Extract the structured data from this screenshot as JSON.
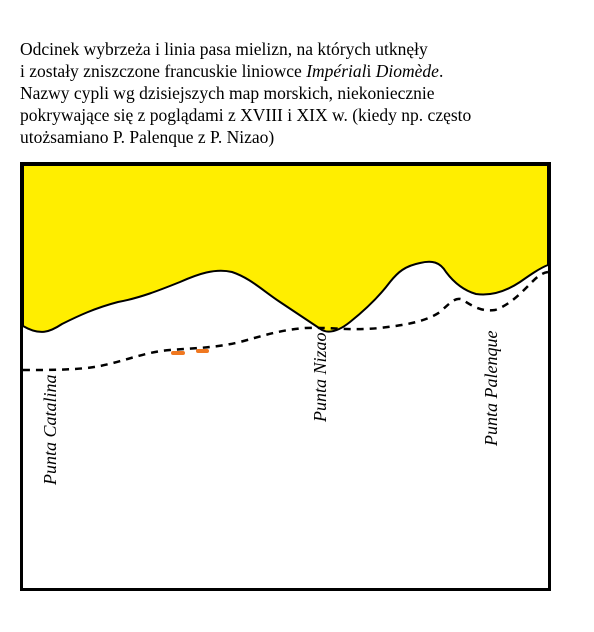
{
  "caption": {
    "line1": "Odcinek wybrzeża i linia pasa mielizn, na których utknęły",
    "line2": {
      "text": "i zostały zniszczone francuskie liniowce",
      "ship1": "Impérial",
      "and": "i",
      "ship2": "Diomède",
      "end": "."
    },
    "line3": "Nazwy cypli wg dzisiejszych map morskich, niekoniecznie",
    "line4": "pokrywające się z poglądami z XVIII i XIX w. (kiedy np. często",
    "line5": "utożsamiano P. Palenque z P. Nizao)"
  },
  "capes": [
    "Punta Catalina",
    "Punta Nizao",
    "Punta Palenque"
  ]
}
